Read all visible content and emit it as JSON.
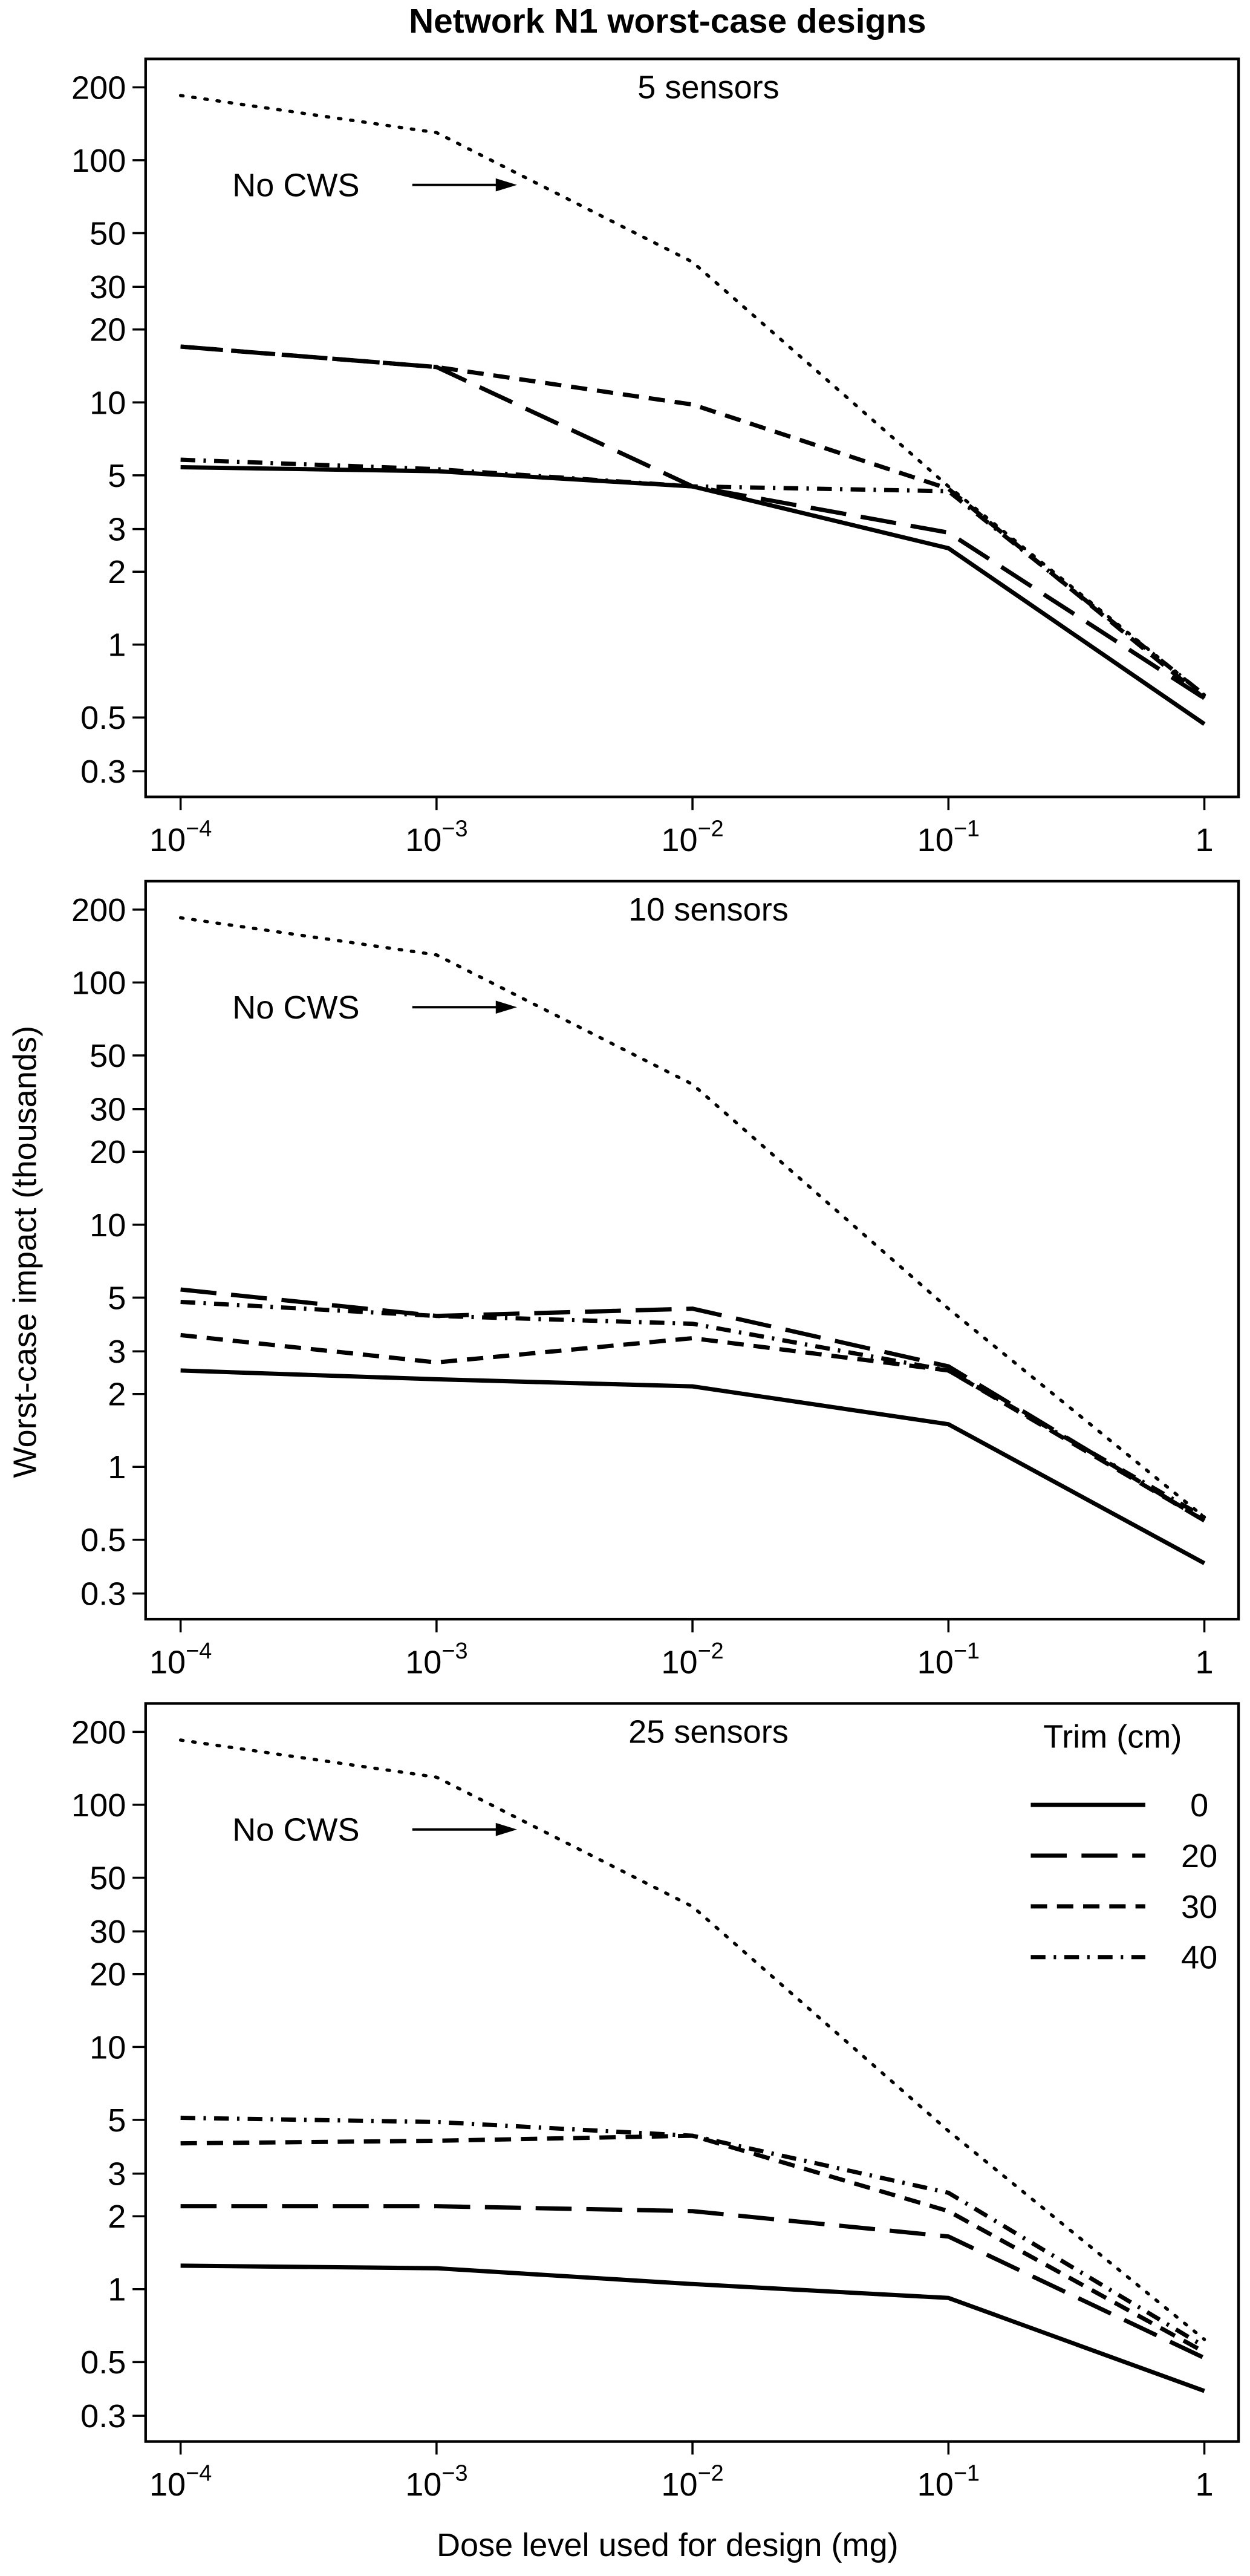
{
  "figure": {
    "title": "Network N1 worst-case designs",
    "ylabel": "Worst-case impact (thousands)",
    "xlabel": "Dose level used for design (mg)"
  },
  "chart_data": [
    {
      "type": "line",
      "subtitle": "5 sensors",
      "xlog": true,
      "ylog": true,
      "x": [
        0.0001,
        0.001,
        0.01,
        0.1,
        1
      ],
      "xlim": [
        7.3e-05,
        1.36
      ],
      "ylim": [
        0.235,
        262
      ],
      "xticks": [
        {
          "value": 0.0001,
          "label": "10",
          "exponent": "−4"
        },
        {
          "value": 0.001,
          "label": "10",
          "exponent": "−3"
        },
        {
          "value": 0.01,
          "label": "10",
          "exponent": "−2"
        },
        {
          "value": 0.1,
          "label": "10",
          "exponent": "−1"
        },
        1
      ],
      "yticks": [
        0.3,
        0.5,
        1,
        2,
        3,
        5,
        10,
        20,
        30,
        50,
        100,
        200
      ],
      "annotation": "No CWS",
      "series": [
        {
          "name": "No CWS",
          "color": "#000000",
          "dash": "dotted",
          "in_legend": false,
          "values": [
            185,
            130,
            38,
            4.5,
            0.62
          ]
        },
        {
          "name": "0",
          "color": "#000000",
          "dash": "solid",
          "values": [
            5.4,
            5.2,
            4.5,
            2.5,
            0.47
          ]
        },
        {
          "name": "20",
          "color": "#000000",
          "dash": "long",
          "values": [
            17,
            14,
            4.5,
            2.9,
            0.6
          ]
        },
        {
          "name": "30",
          "color": "#000000",
          "dash": "short",
          "values": [
            17,
            14,
            9.8,
            4.4,
            0.6
          ]
        },
        {
          "name": "40",
          "color": "#000000",
          "dash": "dashdot",
          "values": [
            5.8,
            5.3,
            4.5,
            4.3,
            0.62
          ]
        }
      ],
      "legend": false
    },
    {
      "type": "line",
      "subtitle": "10 sensors",
      "xlog": true,
      "ylog": true,
      "x": [
        0.0001,
        0.001,
        0.01,
        0.1,
        1
      ],
      "xlim": [
        7.3e-05,
        1.36
      ],
      "ylim": [
        0.235,
        262
      ],
      "xticks": [
        {
          "value": 0.0001,
          "label": "10",
          "exponent": "−4"
        },
        {
          "value": 0.001,
          "label": "10",
          "exponent": "−3"
        },
        {
          "value": 0.01,
          "label": "10",
          "exponent": "−2"
        },
        {
          "value": 0.1,
          "label": "10",
          "exponent": "−1"
        },
        1
      ],
      "yticks": [
        0.3,
        0.5,
        1,
        2,
        3,
        5,
        10,
        20,
        30,
        50,
        100,
        200
      ],
      "annotation": "No CWS",
      "series": [
        {
          "name": "No CWS",
          "color": "#000000",
          "dash": "dotted",
          "in_legend": false,
          "values": [
            185,
            130,
            38,
            4.5,
            0.62
          ]
        },
        {
          "name": "0",
          "color": "#000000",
          "dash": "solid",
          "values": [
            2.5,
            2.3,
            2.15,
            1.5,
            0.4
          ]
        },
        {
          "name": "20",
          "color": "#000000",
          "dash": "long",
          "values": [
            5.4,
            4.2,
            4.5,
            2.6,
            0.6
          ]
        },
        {
          "name": "30",
          "color": "#000000",
          "dash": "short",
          "values": [
            3.5,
            2.7,
            3.4,
            2.5,
            0.6
          ]
        },
        {
          "name": "40",
          "color": "#000000",
          "dash": "dashdot",
          "values": [
            4.8,
            4.2,
            3.9,
            2.5,
            0.62
          ]
        }
      ],
      "legend": false
    },
    {
      "type": "line",
      "subtitle": "25 sensors",
      "xlog": true,
      "ylog": true,
      "x": [
        0.0001,
        0.001,
        0.01,
        0.1,
        1
      ],
      "xlim": [
        7.3e-05,
        1.36
      ],
      "ylim": [
        0.235,
        262
      ],
      "xticks": [
        {
          "value": 0.0001,
          "label": "10",
          "exponent": "−4"
        },
        {
          "value": 0.001,
          "label": "10",
          "exponent": "−3"
        },
        {
          "value": 0.01,
          "label": "10",
          "exponent": "−2"
        },
        {
          "value": 0.1,
          "label": "10",
          "exponent": "−1"
        },
        1
      ],
      "yticks": [
        0.3,
        0.5,
        1,
        2,
        3,
        5,
        10,
        20,
        30,
        50,
        100,
        200
      ],
      "annotation": "No CWS",
      "series": [
        {
          "name": "No CWS",
          "color": "#000000",
          "dash": "dotted",
          "in_legend": false,
          "values": [
            185,
            130,
            38,
            4.5,
            0.62
          ]
        },
        {
          "name": "0",
          "color": "#000000",
          "dash": "solid",
          "values": [
            1.25,
            1.22,
            1.05,
            0.92,
            0.38
          ]
        },
        {
          "name": "20",
          "color": "#000000",
          "dash": "long",
          "values": [
            2.2,
            2.2,
            2.1,
            1.65,
            0.52
          ]
        },
        {
          "name": "30",
          "color": "#000000",
          "dash": "short",
          "values": [
            4.0,
            4.1,
            4.3,
            2.1,
            0.55
          ]
        },
        {
          "name": "40",
          "color": "#000000",
          "dash": "dashdot",
          "values": [
            5.1,
            4.9,
            4.3,
            2.5,
            0.58
          ]
        }
      ],
      "legend": true,
      "legend_title": "Trim (cm)",
      "legend_position": "top-right"
    }
  ]
}
